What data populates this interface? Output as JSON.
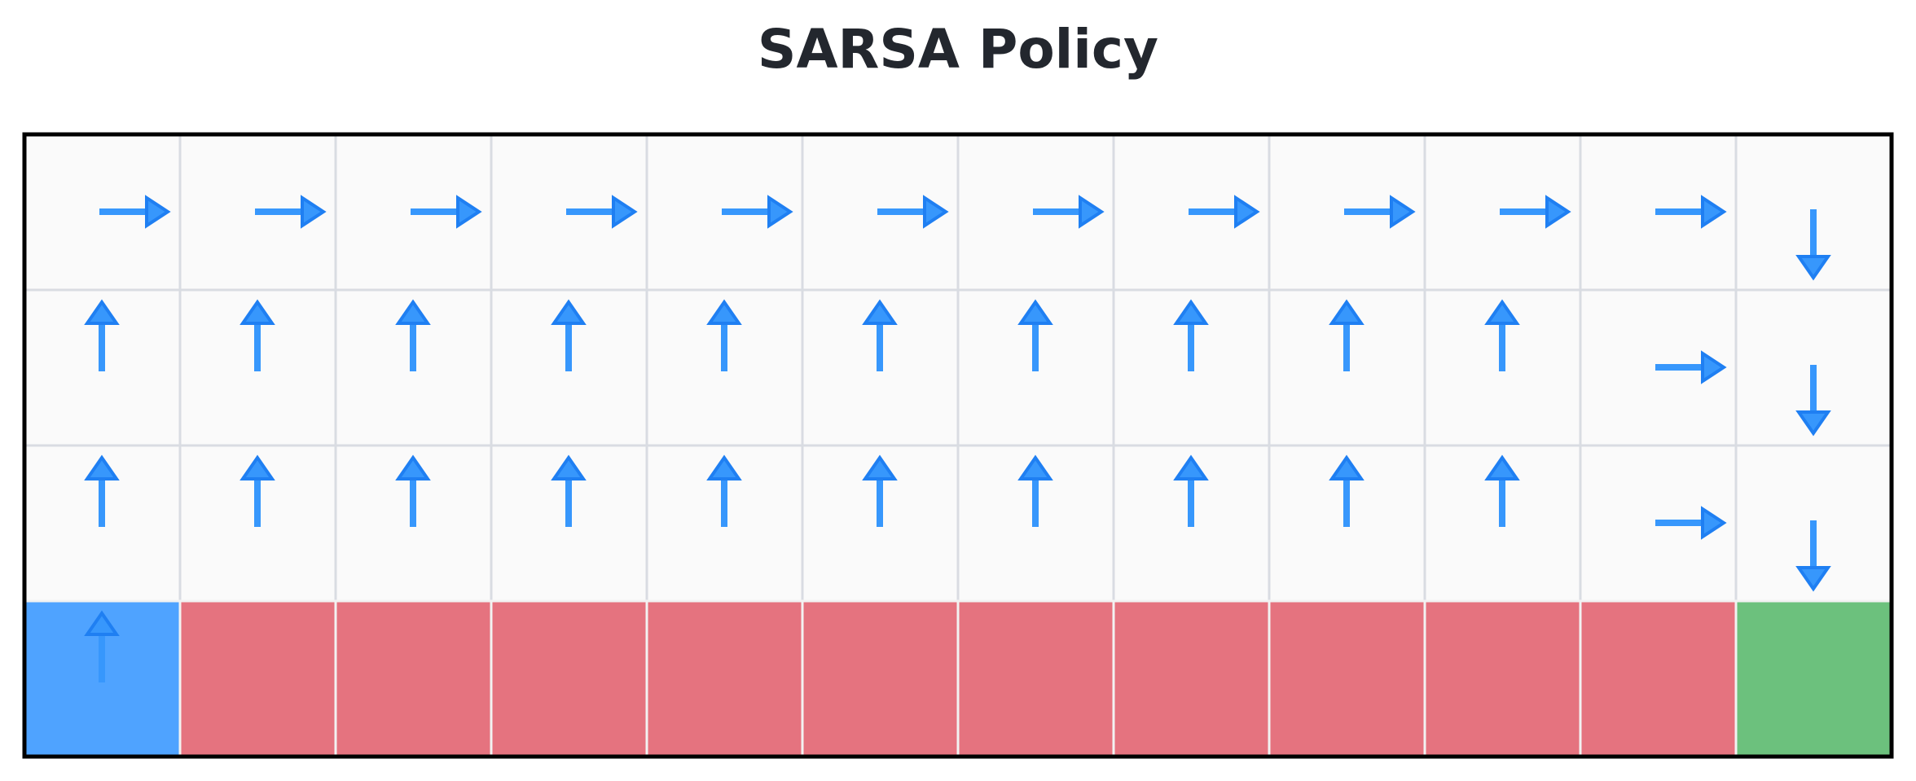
{
  "title": "SARSA Policy",
  "grid": {
    "rows": 4,
    "cols": 12,
    "cells": [
      [
        "empty",
        "empty",
        "empty",
        "empty",
        "empty",
        "empty",
        "empty",
        "empty",
        "empty",
        "empty",
        "empty",
        "empty"
      ],
      [
        "empty",
        "empty",
        "empty",
        "empty",
        "empty",
        "empty",
        "empty",
        "empty",
        "empty",
        "empty",
        "empty",
        "empty"
      ],
      [
        "empty",
        "empty",
        "empty",
        "empty",
        "empty",
        "empty",
        "empty",
        "empty",
        "empty",
        "empty",
        "empty",
        "empty"
      ],
      [
        "start",
        "cliff",
        "cliff",
        "cliff",
        "cliff",
        "cliff",
        "cliff",
        "cliff",
        "cliff",
        "cliff",
        "cliff",
        "goal"
      ]
    ],
    "policy": [
      [
        "right",
        "right",
        "right",
        "right",
        "right",
        "right",
        "right",
        "right",
        "right",
        "right",
        "right",
        "down"
      ],
      [
        "up",
        "up",
        "up",
        "up",
        "up",
        "up",
        "up",
        "up",
        "up",
        "up",
        "right",
        "down"
      ],
      [
        "up",
        "up",
        "up",
        "up",
        "up",
        "up",
        "up",
        "up",
        "up",
        "up",
        "right",
        "down"
      ],
      [
        "up",
        "",
        "",
        "",
        "",
        "",
        "",
        "",
        "",
        "",
        "",
        ""
      ]
    ]
  },
  "colors": {
    "empty": "#fafafa",
    "start": "#4fa3ff",
    "cliff": "#e5737f",
    "goal": "#6cc17d",
    "arrow": "#3797fc",
    "arrow_outline": "#1f7ff2",
    "grid_line": "#d9dce2",
    "border": "#000000"
  }
}
